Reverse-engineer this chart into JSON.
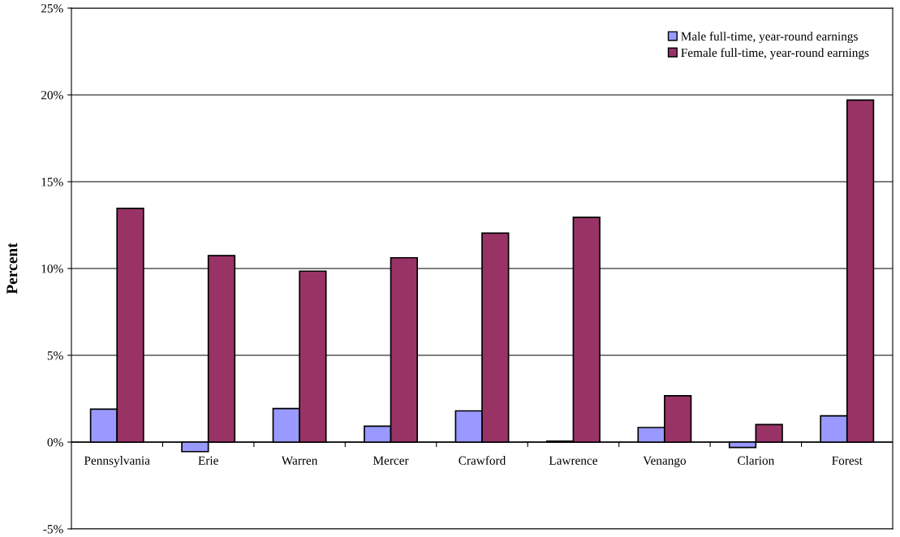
{
  "chart_data": {
    "type": "bar",
    "ylabel": "Percent",
    "categories": [
      "Pennsylvania",
      "Erie",
      "Warren",
      "Mercer",
      "Crawford",
      "Lawrence",
      "Venango",
      "Clarion",
      "Forest"
    ],
    "series": [
      {
        "name": "Male full-time, year-round earnings",
        "color": "#9999ff",
        "values": [
          1.9,
          -0.55,
          1.93,
          0.92,
          1.8,
          0.05,
          0.84,
          -0.31,
          1.51
        ]
      },
      {
        "name": "Female full-time, year-round earnings",
        "color": "#993366",
        "values": [
          13.46,
          10.74,
          9.85,
          10.62,
          12.04,
          12.95,
          2.67,
          1.01,
          19.7
        ]
      }
    ],
    "ylim": [
      -5,
      25
    ],
    "yticks": [
      {
        "value": -5,
        "label": "-5%"
      },
      {
        "value": 0,
        "label": "0%"
      },
      {
        "value": 5,
        "label": "5%"
      },
      {
        "value": 10,
        "label": "10%"
      },
      {
        "value": 15,
        "label": "15%"
      },
      {
        "value": 20,
        "label": "20%"
      },
      {
        "value": 25,
        "label": "25%"
      }
    ],
    "grid": "y",
    "legend": "top right"
  }
}
